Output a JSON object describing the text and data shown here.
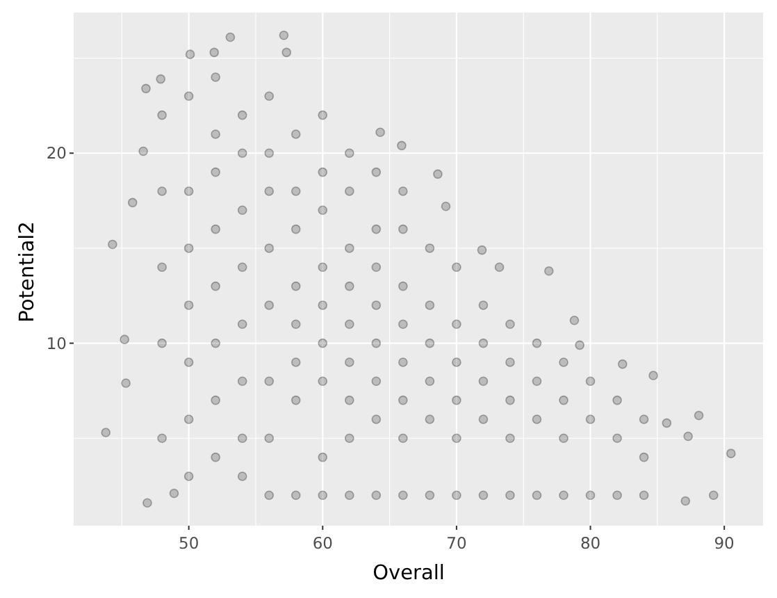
{
  "chart_data": {
    "type": "scatter",
    "xlabel": "Overall",
    "ylabel": "Potential2",
    "x": [
      48,
      48,
      48,
      48,
      48,
      50,
      50,
      50,
      50,
      50,
      50,
      50,
      52,
      52,
      52,
      52,
      52,
      52,
      52,
      52,
      54,
      54,
      54,
      54,
      54,
      54,
      54,
      54,
      56,
      56,
      56,
      56,
      56,
      56,
      56,
      56,
      58,
      58,
      58,
      58,
      58,
      58,
      58,
      58,
      60,
      60,
      60,
      60,
      60,
      60,
      60,
      60,
      60,
      62,
      62,
      62,
      62,
      62,
      62,
      62,
      62,
      62,
      64,
      64,
      64,
      64,
      64,
      64,
      64,
      64,
      66,
      66,
      66,
      66,
      66,
      66,
      66,
      66,
      68,
      68,
      68,
      68,
      68,
      68,
      70,
      70,
      70,
      70,
      70,
      70,
      72,
      72,
      72,
      72,
      72,
      74,
      74,
      74,
      74,
      74,
      76,
      76,
      76,
      76,
      78,
      78,
      78,
      78,
      80,
      80,
      80,
      82,
      82,
      82,
      84,
      84,
      84,
      53.1,
      57.1,
      51.9,
      50.1,
      57.3,
      46.8,
      44.3,
      45.8,
      46.6,
      47.9,
      64.3,
      65.9,
      68.6,
      69.2,
      76.9,
      71.9,
      73.2,
      43.8,
      46.9,
      45.3,
      45.2,
      48.9,
      90.5,
      88.1,
      89.2,
      87.1,
      84.7,
      82.4,
      79.2,
      78.8,
      85.7,
      87.3
    ],
    "values": [
      5,
      10,
      14,
      18,
      22,
      3,
      6,
      9,
      12,
      15,
      18,
      23,
      4,
      7,
      10,
      13,
      16,
      19,
      21,
      24,
      3,
      5,
      8,
      11,
      14,
      17,
      20,
      22,
      2,
      5,
      8,
      12,
      15,
      18,
      20,
      23,
      2,
      7,
      9,
      11,
      13,
      16,
      18,
      21,
      2,
      4,
      8,
      10,
      12,
      14,
      17,
      19,
      22,
      2,
      5,
      7,
      9,
      11,
      13,
      15,
      18,
      20,
      2,
      6,
      8,
      10,
      12,
      14,
      16,
      19,
      2,
      5,
      7,
      9,
      11,
      13,
      16,
      18,
      2,
      6,
      8,
      10,
      12,
      15,
      2,
      5,
      7,
      9,
      11,
      14,
      2,
      6,
      8,
      10,
      12,
      2,
      5,
      7,
      9,
      11,
      2,
      6,
      8,
      10,
      2,
      5,
      7,
      9,
      2,
      6,
      8,
      2,
      5,
      7,
      2,
      4,
      6,
      26.1,
      26.2,
      25.3,
      25.2,
      25.3,
      23.4,
      15.2,
      17.4,
      20.1,
      23.9,
      21.1,
      20.4,
      18.9,
      17.2,
      13.8,
      14.9,
      14.0,
      5.3,
      1.6,
      7.9,
      10.2,
      2.1,
      4.2,
      6.2,
      2.0,
      1.7,
      8.3,
      8.9,
      9.9,
      11.2,
      5.8,
      5.1
    ],
    "color": "#000000",
    "marker": "circle",
    "grid": true,
    "xlim": [
      41.4,
      92.9
    ],
    "xticks": [
      {
        "value": 45,
        "label": null
      },
      50,
      {
        "value": 55,
        "label": null
      },
      60,
      {
        "value": 65,
        "label": null
      },
      70,
      {
        "value": 75,
        "label": null
      },
      80,
      {
        "value": 85,
        "label": null
      },
      90
    ],
    "ylim": [
      0.4,
      27.4
    ],
    "yticks": [
      {
        "value": 5,
        "label": null
      },
      10,
      {
        "value": 15,
        "label": null
      },
      20,
      {
        "value": 25,
        "label": null
      }
    ]
  }
}
